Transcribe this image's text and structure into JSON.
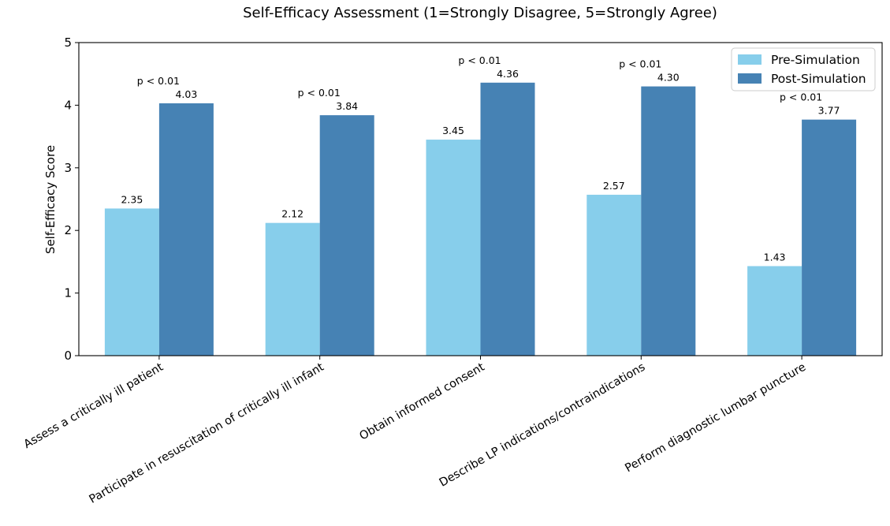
{
  "chart_data": {
    "type": "bar",
    "title": "Self-Efficacy Assessment (1=Strongly Disagree, 5=Strongly Agree)",
    "xlabel": "",
    "ylabel": "Self-Efficacy Score",
    "ylim": [
      0,
      5
    ],
    "yticks": [
      "0",
      "1",
      "2",
      "3",
      "4",
      "5"
    ],
    "categories": [
      "Assess a critically ill patient",
      "Participate in resuscitation of critically ill infant",
      "Obtain informed consent",
      "Describe LP indications/contraindications",
      "Perform diagnostic lumbar puncture"
    ],
    "series": [
      {
        "name": "Pre-Simulation",
        "color": "#87CEEB",
        "values": [
          2.35,
          2.12,
          3.45,
          2.57,
          1.43
        ],
        "labels": [
          "2.35",
          "2.12",
          "3.45",
          "2.57",
          "1.43"
        ]
      },
      {
        "name": "Post-Simulation",
        "color": "#4682B4",
        "values": [
          4.03,
          3.84,
          4.36,
          4.3,
          3.77
        ],
        "labels": [
          "4.03",
          "3.84",
          "4.36",
          "4.30",
          "3.77"
        ]
      }
    ],
    "annotations": [
      "p < 0.01",
      "p < 0.01",
      "p < 0.01",
      "p < 0.01",
      "p < 0.01"
    ],
    "legend_position": "top-right",
    "grid": false
  }
}
